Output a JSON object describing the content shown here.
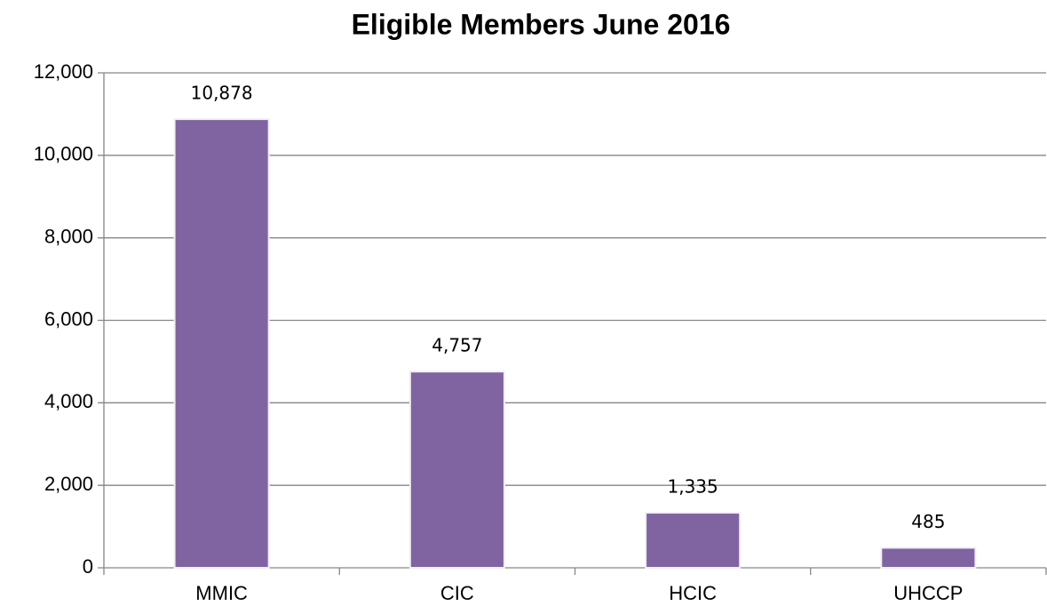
{
  "chart_data": {
    "type": "bar",
    "title": "Eligible Members June 2016",
    "categories": [
      "MMIC",
      "CIC",
      "HCIC",
      "UHCCP"
    ],
    "values": [
      10878,
      4757,
      1335,
      485
    ],
    "value_labels": [
      "10,878",
      "4,757",
      "1,335",
      "485"
    ],
    "color": "#8064a2",
    "ylim": [
      0,
      12000
    ],
    "yticks": [
      0,
      {
        "value": 2000,
        "label": "2,000"
      },
      {
        "value": 4000,
        "label": "4,000"
      },
      {
        "value": 6000,
        "label": "6,000"
      },
      {
        "value": 8000,
        "label": "8,000"
      },
      {
        "value": 10000,
        "label": "10,000"
      },
      {
        "value": 12000,
        "label": "12,000"
      }
    ],
    "grid": true
  }
}
